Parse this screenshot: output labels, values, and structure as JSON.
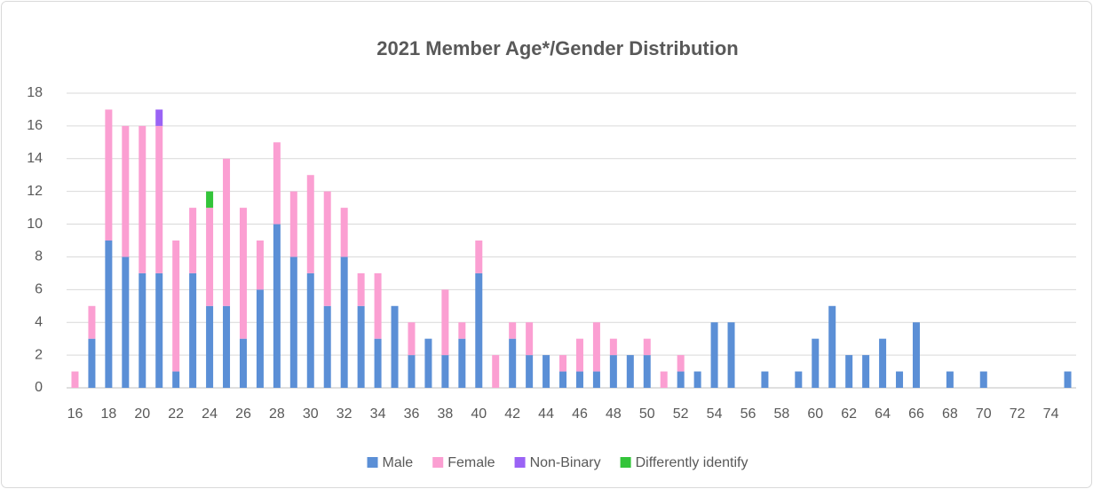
{
  "chart_data": {
    "type": "stacked_bar",
    "title": "2021 Member Age*/Gender Distribution",
    "categories": [
      "16",
      null,
      "18",
      null,
      "20",
      null,
      "22",
      null,
      "24",
      null,
      "26",
      null,
      "28",
      null,
      "30",
      null,
      "32",
      null,
      "34",
      null,
      "36",
      null,
      "38",
      null,
      "40",
      null,
      "42",
      null,
      "44",
      null,
      "46",
      null,
      "48",
      null,
      "50",
      null,
      "52",
      null,
      "54",
      null,
      "56",
      null,
      "58",
      null,
      "60",
      null,
      "62",
      null,
      "64",
      null,
      "66",
      null,
      "68",
      null,
      "70",
      null,
      "72",
      null,
      "74",
      null
    ],
    "series": [
      {
        "name": "Male",
        "color": "#5b8fd6",
        "values": [
          0,
          3,
          9,
          8,
          7,
          7,
          1,
          7,
          5,
          5,
          3,
          6,
          10,
          8,
          7,
          5,
          8,
          5,
          3,
          5,
          2,
          3,
          2,
          3,
          7,
          0,
          3,
          2,
          2,
          1,
          1,
          1,
          2,
          2,
          2,
          0,
          1,
          1,
          4,
          4,
          0,
          1,
          0,
          1,
          3,
          5,
          2,
          2,
          3,
          1,
          4,
          0,
          1,
          0,
          1,
          0,
          0,
          0,
          0,
          1
        ]
      },
      {
        "name": "Female",
        "color": "#fb9fd2",
        "values": [
          1,
          2,
          8,
          8,
          9,
          9,
          8,
          4,
          6,
          9,
          8,
          3,
          5,
          4,
          6,
          7,
          3,
          2,
          4,
          0,
          2,
          0,
          4,
          1,
          2,
          2,
          1,
          2,
          0,
          1,
          2,
          3,
          1,
          0,
          1,
          1,
          1,
          0,
          0,
          0,
          0,
          0,
          0,
          0,
          0,
          0,
          0,
          0,
          0,
          0,
          0,
          0,
          0,
          0,
          0,
          0,
          0,
          0,
          0,
          0
        ]
      },
      {
        "name": "Non-Binary",
        "color": "#9a63f5",
        "values": [
          0,
          0,
          0,
          0,
          0,
          1,
          0,
          0,
          0,
          0,
          0,
          0,
          0,
          0,
          0,
          0,
          0,
          0,
          0,
          0,
          0,
          0,
          0,
          0,
          0,
          0,
          0,
          0,
          0,
          0,
          0,
          0,
          0,
          0,
          0,
          0,
          0,
          0,
          0,
          0,
          0,
          0,
          0,
          0,
          0,
          0,
          0,
          0,
          0,
          0,
          0,
          0,
          0,
          0,
          0,
          0,
          0,
          0,
          0,
          0
        ]
      },
      {
        "name": "Differently identify",
        "color": "#33c43a",
        "values": [
          0,
          0,
          0,
          0,
          0,
          0,
          0,
          0,
          1,
          0,
          0,
          0,
          0,
          0,
          0,
          0,
          0,
          0,
          0,
          0,
          0,
          0,
          0,
          0,
          0,
          0,
          0,
          0,
          0,
          0,
          0,
          0,
          0,
          0,
          0,
          0,
          0,
          0,
          0,
          0,
          0,
          0,
          0,
          0,
          0,
          0,
          0,
          0,
          0,
          0,
          0,
          0,
          0,
          0,
          0,
          0,
          0,
          0,
          0,
          0
        ]
      }
    ],
    "ylim": [
      0,
      18
    ],
    "yticks": [
      0,
      2,
      4,
      6,
      8,
      10,
      12,
      14,
      16,
      18
    ],
    "grid": true,
    "legend": "bottom"
  }
}
